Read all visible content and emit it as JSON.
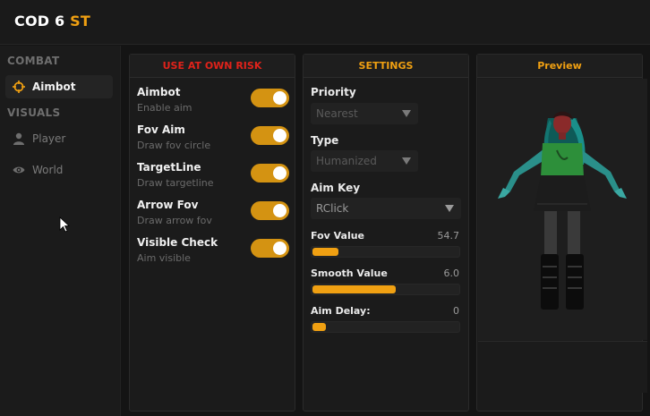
{
  "app": {
    "title_main": "COD 6",
    "title_accent": "ST"
  },
  "colors": {
    "accent": "#f0a012",
    "danger": "#e0221a",
    "toggle_on": "#d49312"
  },
  "sidebar": {
    "sections": [
      {
        "label": "COMBAT",
        "items": [
          {
            "label": "Aimbot",
            "icon": "crosshair-icon",
            "active": true
          }
        ]
      },
      {
        "label": "VISUALS",
        "items": [
          {
            "label": "Player",
            "icon": "person-icon",
            "active": false
          },
          {
            "label": "World",
            "icon": "eye-icon",
            "active": false
          }
        ]
      }
    ]
  },
  "combat_panel": {
    "header": "USE AT OWN RISK",
    "toggles": [
      {
        "title": "Aimbot",
        "subtitle": "Enable aim",
        "on": true
      },
      {
        "title": "Fov Aim",
        "subtitle": "Draw fov circle",
        "on": true
      },
      {
        "title": "TargetLine",
        "subtitle": "Draw targetline",
        "on": true
      },
      {
        "title": "Arrow Fov",
        "subtitle": "Draw arrow fov",
        "on": true
      },
      {
        "title": "Visible Check",
        "subtitle": "Aim visible",
        "on": true
      }
    ]
  },
  "settings_panel": {
    "header": "SETTINGS",
    "priority": {
      "label": "Priority",
      "value": "Nearest"
    },
    "type": {
      "label": "Type",
      "value": "Humanized"
    },
    "aim_key": {
      "label": "Aim Key",
      "value": "RClick"
    },
    "sliders": [
      {
        "label": "Fov Value",
        "value": "54.7",
        "fraction": 0.18
      },
      {
        "label": "Smooth Value",
        "value": "6.0",
        "fraction": 0.57
      },
      {
        "label": "Aim Delay:",
        "value": "0",
        "fraction": 0.09
      }
    ]
  },
  "preview_panel": {
    "header": "Preview"
  }
}
